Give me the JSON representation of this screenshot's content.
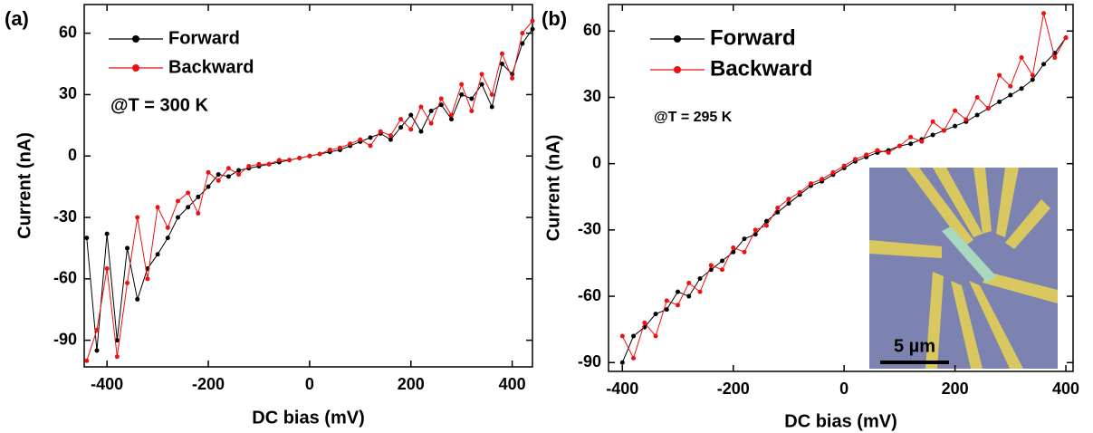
{
  "chart_data": [
    {
      "type": "line",
      "panel_label": "(a)",
      "annotation": "@T = 300 K",
      "xlabel": "DC bias (mV)",
      "ylabel": "Current (nA)",
      "xlim": [
        -445,
        440
      ],
      "ylim": [
        -103,
        74
      ],
      "xticks": [
        -400,
        -200,
        0,
        200,
        400
      ],
      "yticks": [
        -90,
        -60,
        -30,
        0,
        30,
        60
      ],
      "legend": "upper left",
      "x": [
        -440,
        -420,
        -400,
        -380,
        -360,
        -340,
        -320,
        -300,
        -280,
        -260,
        -240,
        -220,
        -200,
        -180,
        -160,
        -140,
        -120,
        -100,
        -80,
        -60,
        -40,
        -20,
        0,
        20,
        40,
        60,
        80,
        100,
        120,
        140,
        160,
        180,
        200,
        220,
        240,
        260,
        280,
        300,
        320,
        340,
        360,
        380,
        400,
        420,
        440
      ],
      "series": [
        {
          "name": "Forward",
          "color": "#000000",
          "values": [
            -40,
            -95,
            -38,
            -90,
            -45,
            -70,
            -55,
            -48,
            -40,
            -30,
            -25,
            -20,
            -15,
            -9,
            -10,
            -7,
            -6,
            -5,
            -4,
            -3,
            -2,
            -1,
            0,
            1,
            2,
            3,
            5,
            7,
            9,
            11,
            8,
            14,
            20,
            12,
            22,
            25,
            18,
            30,
            28,
            35,
            24,
            45,
            40,
            55,
            62
          ]
        },
        {
          "name": "Backward",
          "color": "#ee1111",
          "values": [
            -100,
            -85,
            -55,
            -98,
            -62,
            -30,
            -60,
            -25,
            -35,
            -22,
            -18,
            -28,
            -8,
            -12,
            -6,
            -9,
            -5,
            -4,
            -4,
            -2,
            -2,
            -1,
            0,
            1,
            3,
            4,
            6,
            8,
            5,
            12,
            10,
            18,
            13,
            24,
            16,
            28,
            20,
            35,
            22,
            40,
            30,
            50,
            38,
            60,
            66
          ]
        }
      ]
    },
    {
      "type": "line",
      "panel_label": "(b)",
      "annotation": "@T = 295 K",
      "xlabel": "DC bias (mV)",
      "ylabel": "Current (nA)",
      "xlim": [
        -425,
        413
      ],
      "ylim": [
        -94,
        72
      ],
      "xticks": [
        -400,
        -200,
        0,
        200,
        400
      ],
      "yticks": [
        -90,
        -60,
        -30,
        0,
        30,
        60
      ],
      "legend": "upper left",
      "inset_scale_bar": "5 µm",
      "x": [
        -400,
        -380,
        -360,
        -340,
        -320,
        -300,
        -280,
        -260,
        -240,
        -220,
        -200,
        -180,
        -160,
        -140,
        -120,
        -100,
        -80,
        -60,
        -40,
        -20,
        0,
        20,
        40,
        60,
        80,
        100,
        120,
        140,
        160,
        180,
        200,
        220,
        240,
        260,
        280,
        300,
        320,
        340,
        360,
        380,
        400
      ],
      "series": [
        {
          "name": "Forward",
          "color": "#000000",
          "values": [
            -90,
            -78,
            -74,
            -68,
            -66,
            -58,
            -60,
            -52,
            -48,
            -44,
            -40,
            -34,
            -32,
            -26,
            -22,
            -18,
            -14,
            -10,
            -8,
            -5,
            -2,
            1,
            3,
            5,
            6,
            8,
            9,
            11,
            13,
            15,
            17,
            19,
            22,
            25,
            28,
            31,
            34,
            38,
            45,
            50,
            57
          ]
        },
        {
          "name": "Backward",
          "color": "#ee1111",
          "values": [
            -78,
            -88,
            -72,
            -78,
            -62,
            -64,
            -54,
            -58,
            -46,
            -48,
            -38,
            -40,
            -30,
            -28,
            -20,
            -16,
            -13,
            -9,
            -7,
            -4,
            -1,
            2,
            4,
            6,
            5,
            8,
            12,
            10,
            19,
            15,
            24,
            20,
            30,
            25,
            40,
            35,
            48,
            40,
            68,
            48,
            57
          ]
        }
      ]
    }
  ]
}
